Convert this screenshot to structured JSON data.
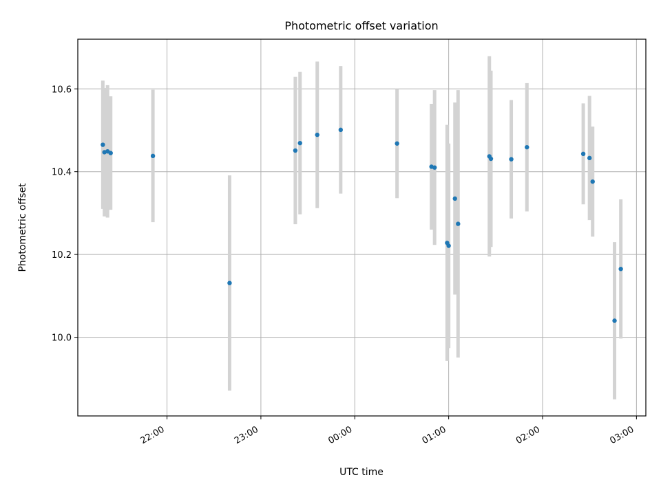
{
  "chart_data": {
    "type": "scatter",
    "title": "Photometric offset variation",
    "xlabel": "UTC time",
    "ylabel": "Photometric offset",
    "grid": true,
    "xlim": [
      "21:03",
      "03:06"
    ],
    "ylim": [
      9.81,
      10.72
    ],
    "x_ticks": [
      "22:00",
      "23:00",
      "00:00",
      "01:00",
      "02:00",
      "03:00"
    ],
    "y_ticks": [
      "10.0",
      "10.2",
      "10.4",
      "10.6"
    ],
    "colors": {
      "point": "#1f77b4",
      "errorbar": "#d3d3d3",
      "grid": "#b0b0b0"
    },
    "points": [
      {
        "x": "21:19",
        "y": 10.465,
        "err": 0.155
      },
      {
        "x": "21:20",
        "y": 10.447,
        "err": 0.155
      },
      {
        "x": "21:22",
        "y": 10.449,
        "err": 0.16
      },
      {
        "x": "21:24",
        "y": 10.445,
        "err": 0.137
      },
      {
        "x": "21:51",
        "y": 10.438,
        "err": 0.16
      },
      {
        "x": "22:40",
        "y": 10.131,
        "err": 0.26
      },
      {
        "x": "23:22",
        "y": 10.451,
        "err": 0.178
      },
      {
        "x": "23:25",
        "y": 10.469,
        "err": 0.172
      },
      {
        "x": "23:36",
        "y": 10.489,
        "err": 0.177
      },
      {
        "x": "23:51",
        "y": 10.501,
        "err": 0.154
      },
      {
        "x": "00:27",
        "y": 10.468,
        "err": 0.132
      },
      {
        "x": "00:49",
        "y": 10.412,
        "err": 0.152
      },
      {
        "x": "00:51",
        "y": 10.41,
        "err": 0.187
      },
      {
        "x": "00:59",
        "y": 10.228,
        "err": 0.285
      },
      {
        "x": "01:00",
        "y": 10.221,
        "err": 0.247
      },
      {
        "x": "01:04",
        "y": 10.335,
        "err": 0.232
      },
      {
        "x": "01:06",
        "y": 10.274,
        "err": 0.323
      },
      {
        "x": "01:26",
        "y": 10.437,
        "err": 0.242
      },
      {
        "x": "01:27",
        "y": 10.431,
        "err": 0.213
      },
      {
        "x": "01:40",
        "y": 10.43,
        "err": 0.143
      },
      {
        "x": "01:50",
        "y": 10.459,
        "err": 0.155
      },
      {
        "x": "02:26",
        "y": 10.443,
        "err": 0.122
      },
      {
        "x": "02:30",
        "y": 10.433,
        "err": 0.15
      },
      {
        "x": "02:32",
        "y": 10.376,
        "err": 0.133
      },
      {
        "x": "02:46",
        "y": 10.04,
        "err": 0.19
      },
      {
        "x": "02:50",
        "y": 10.165,
        "err": 0.168
      }
    ]
  }
}
